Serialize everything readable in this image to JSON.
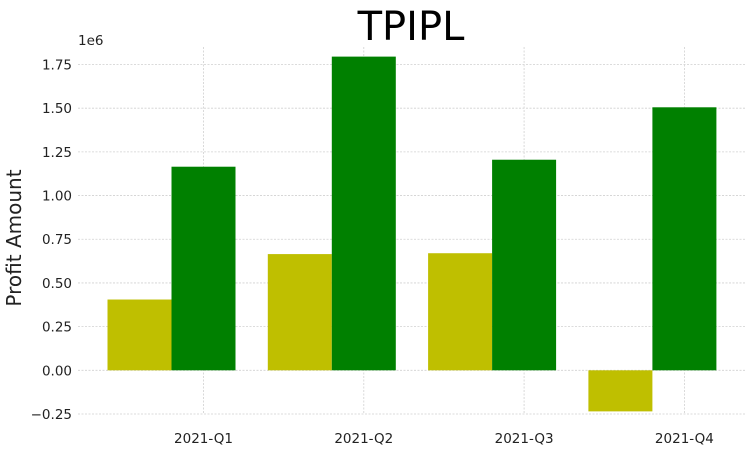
{
  "chart_data": {
    "type": "bar",
    "title": "TPIPL",
    "xlabel": "",
    "ylabel": "Profit Amount",
    "y_offset_label": "1e6",
    "categories": [
      "2021-Q1",
      "2021-Q2",
      "2021-Q3",
      "2021-Q4"
    ],
    "series": [
      {
        "color": "#bfbf00",
        "values": [
          0.405,
          0.665,
          0.67,
          -0.235
        ]
      },
      {
        "color": "#008000",
        "values": [
          1.165,
          1.795,
          1.205,
          1.505
        ]
      }
    ],
    "ylim": [
      -0.25,
      1.85
    ],
    "yticks": [
      -0.25,
      0.0,
      0.25,
      0.5,
      0.75,
      1.0,
      1.25,
      1.5,
      1.75
    ],
    "ytick_labels": [
      "−0.25",
      "0.00",
      "0.25",
      "0.50",
      "0.75",
      "1.00",
      "1.25",
      "1.50",
      "1.75"
    ],
    "grid": true,
    "legend": "none"
  }
}
